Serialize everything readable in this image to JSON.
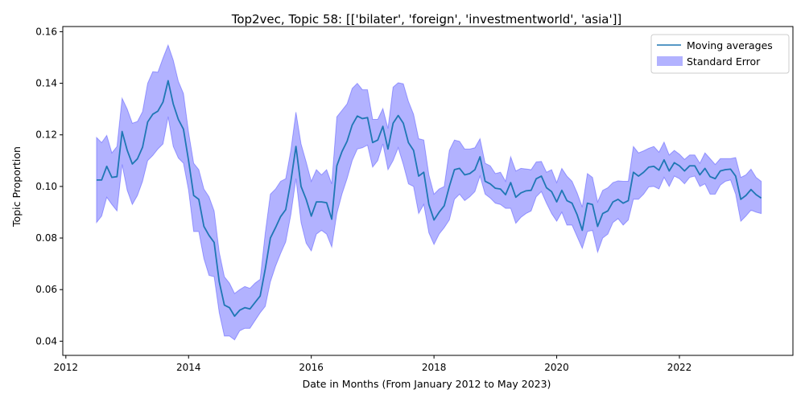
{
  "chart_data": {
    "type": "line",
    "title": "Top2vec, Topic 58: [['bilater', 'foreign', 'investmentworld', 'asia']]",
    "xlabel": "Date in Months (From January 2012 to May 2023)",
    "ylabel": "Topic Proportion",
    "xlim": [
      2011.95,
      2023.85
    ],
    "ylim": [
      0.0345,
      0.162
    ],
    "x_ticks": [
      2012,
      2014,
      2016,
      2018,
      2020,
      2022
    ],
    "y_ticks": [
      0.04,
      0.06,
      0.08,
      0.1,
      0.12,
      0.14,
      0.16
    ],
    "y_tick_labels": [
      "0.04",
      "0.06",
      "0.08",
      "0.10",
      "0.12",
      "0.14",
      "0.16"
    ],
    "grid": false,
    "legend_position": "top-right",
    "x_start": 2012.5,
    "x_step_months": 1,
    "series": [
      {
        "name": "Moving averages",
        "kind": "line",
        "color": "#1f77b4",
        "values": [
          0.1025,
          0.1025,
          0.1078,
          0.1035,
          0.1038,
          0.1213,
          0.114,
          0.1087,
          0.1107,
          0.1152,
          0.125,
          0.128,
          0.1292,
          0.1327,
          0.141,
          0.132,
          0.126,
          0.1222,
          0.11,
          0.0965,
          0.095,
          0.0845,
          0.081,
          0.0783,
          0.063,
          0.054,
          0.053,
          0.0497,
          0.052,
          0.053,
          0.0525,
          0.055,
          0.0575,
          0.068,
          0.08,
          0.084,
          0.0883,
          0.091,
          0.102,
          0.1155,
          0.1,
          0.095,
          0.0885,
          0.094,
          0.094,
          0.0937,
          0.0873,
          0.108,
          0.1135,
          0.1175,
          0.1238,
          0.1273,
          0.1263,
          0.1267,
          0.117,
          0.118,
          0.1233,
          0.1145,
          0.1245,
          0.1275,
          0.1245,
          0.117,
          0.114,
          0.104,
          0.1055,
          0.093,
          0.087,
          0.09,
          0.0925,
          0.1,
          0.1065,
          0.107,
          0.1045,
          0.105,
          0.1065,
          0.1115,
          0.102,
          0.101,
          0.0993,
          0.099,
          0.0968,
          0.1015,
          0.0958,
          0.0975,
          0.0983,
          0.0985,
          0.103,
          0.104,
          0.0995,
          0.098,
          0.094,
          0.0985,
          0.0945,
          0.0935,
          0.089,
          0.083,
          0.0935,
          0.093,
          0.0845,
          0.0895,
          0.0905,
          0.094,
          0.095,
          0.0935,
          0.0945,
          0.1055,
          0.104,
          0.1055,
          0.1075,
          0.1078,
          0.1063,
          0.1103,
          0.106,
          0.1092,
          0.108,
          0.106,
          0.108,
          0.108,
          0.1045,
          0.107,
          0.1038,
          0.103,
          0.106,
          0.1065,
          0.1067,
          0.104,
          0.095,
          0.0965,
          0.0988,
          0.0968,
          0.0955
        ]
      },
      {
        "name": "Standard Error",
        "kind": "band",
        "color": "#0000ff",
        "opacity": 0.3,
        "upper": [
          0.119,
          0.117,
          0.1198,
          0.113,
          0.1155,
          0.1342,
          0.13,
          0.1245,
          0.1252,
          0.129,
          0.14,
          0.1445,
          0.1443,
          0.1498,
          0.1548,
          0.149,
          0.1408,
          0.136,
          0.121,
          0.109,
          0.1065,
          0.099,
          0.096,
          0.0905,
          0.0745,
          0.065,
          0.0625,
          0.0585,
          0.06,
          0.0612,
          0.0605,
          0.0625,
          0.064,
          0.082,
          0.097,
          0.099,
          0.102,
          0.103,
          0.114,
          0.1288,
          0.1165,
          0.1095,
          0.102,
          0.1065,
          0.1045,
          0.1065,
          0.101,
          0.127,
          0.1295,
          0.132,
          0.138,
          0.14,
          0.1375,
          0.1375,
          0.126,
          0.126,
          0.1302,
          0.1225,
          0.1385,
          0.1402,
          0.1398,
          0.133,
          0.128,
          0.1185,
          0.118,
          0.1045,
          0.097,
          0.099,
          0.1,
          0.114,
          0.118,
          0.1175,
          0.1145,
          0.1145,
          0.115,
          0.1185,
          0.109,
          0.108,
          0.105,
          0.1055,
          0.102,
          0.1115,
          0.106,
          0.107,
          0.1068,
          0.1065,
          0.1095,
          0.1097,
          0.1055,
          0.1065,
          0.1015,
          0.107,
          0.104,
          0.102,
          0.0975,
          0.092,
          0.105,
          0.1035,
          0.094,
          0.0985,
          0.0995,
          0.1015,
          0.1022,
          0.102,
          0.102,
          0.1155,
          0.113,
          0.1138,
          0.1148,
          0.1155,
          0.1133,
          0.1172,
          0.1122,
          0.114,
          0.1125,
          0.1105,
          0.1122,
          0.1122,
          0.109,
          0.113,
          0.1108,
          0.1085,
          0.1108,
          0.1108,
          0.1108,
          0.1112,
          0.1035,
          0.1045,
          0.1067,
          0.1035,
          0.102
        ],
        "lower": [
          0.086,
          0.0885,
          0.0958,
          0.093,
          0.0905,
          0.1085,
          0.0985,
          0.093,
          0.0965,
          0.102,
          0.11,
          0.112,
          0.1145,
          0.1165,
          0.127,
          0.1155,
          0.111,
          0.109,
          0.0985,
          0.0825,
          0.0825,
          0.072,
          0.0655,
          0.065,
          0.051,
          0.042,
          0.042,
          0.0405,
          0.044,
          0.045,
          0.045,
          0.048,
          0.051,
          0.0535,
          0.063,
          0.069,
          0.074,
          0.0785,
          0.089,
          0.103,
          0.086,
          0.078,
          0.075,
          0.0815,
          0.083,
          0.0815,
          0.0765,
          0.0895,
          0.097,
          0.103,
          0.11,
          0.1145,
          0.115,
          0.116,
          0.1075,
          0.11,
          0.1165,
          0.1065,
          0.11,
          0.115,
          0.1085,
          0.101,
          0.1,
          0.0895,
          0.093,
          0.082,
          0.0775,
          0.0815,
          0.084,
          0.087,
          0.095,
          0.097,
          0.0945,
          0.096,
          0.098,
          0.104,
          0.097,
          0.0955,
          0.0935,
          0.093,
          0.0915,
          0.0915,
          0.0857,
          0.088,
          0.0895,
          0.0905,
          0.096,
          0.098,
          0.0935,
          0.0895,
          0.0865,
          0.09,
          0.085,
          0.085,
          0.0805,
          0.076,
          0.0825,
          0.083,
          0.0745,
          0.08,
          0.0815,
          0.086,
          0.0875,
          0.085,
          0.087,
          0.095,
          0.095,
          0.097,
          0.0998,
          0.1,
          0.099,
          0.1035,
          0.1,
          0.104,
          0.103,
          0.101,
          0.1035,
          0.104,
          0.1,
          0.101,
          0.097,
          0.097,
          0.1005,
          0.102,
          0.1025,
          0.097,
          0.0865,
          0.0885,
          0.0908,
          0.09,
          0.0895
        ]
      }
    ]
  }
}
